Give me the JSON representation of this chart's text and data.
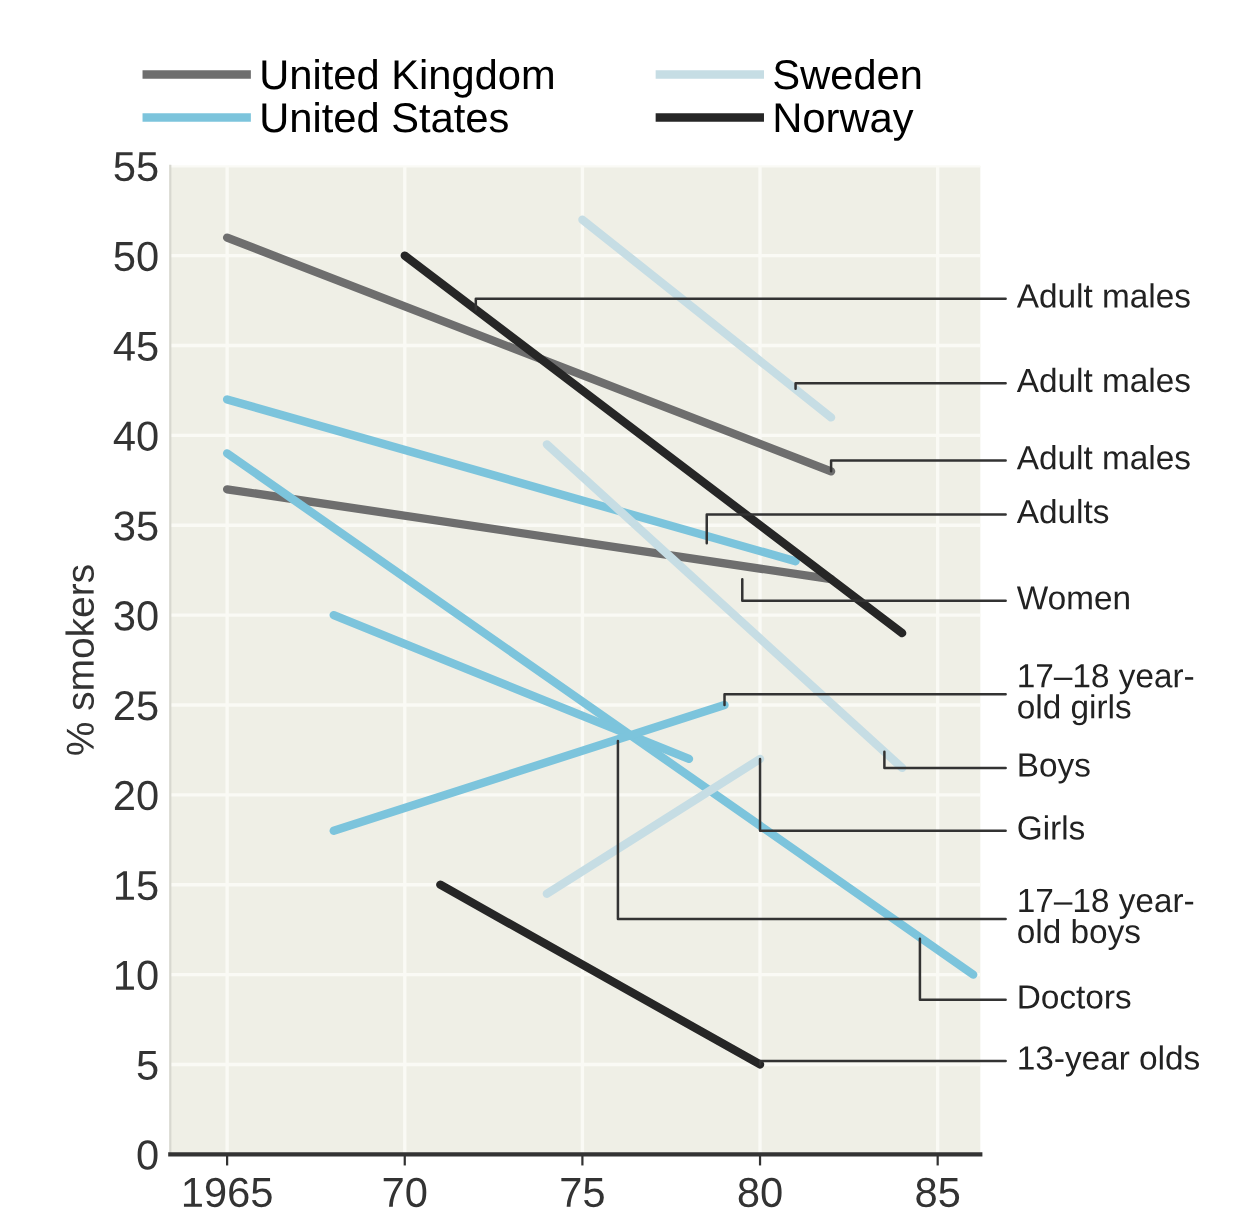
{
  "chart_data": {
    "type": "line",
    "ylabel": "% smokers",
    "xlim": [
      1963.4,
      1986.2
    ],
    "ylim": [
      0,
      55
    ],
    "xticks": [
      1965,
      {
        "value": 1970,
        "label": "70"
      },
      {
        "value": 1975,
        "label": "75"
      },
      {
        "value": 1980,
        "label": "80"
      },
      {
        "value": 1985,
        "label": "85"
      }
    ],
    "yticks": [
      0,
      5,
      10,
      15,
      20,
      25,
      30,
      35,
      40,
      45,
      50,
      55
    ],
    "grid": true,
    "legend": "top",
    "marker": "none",
    "line_style": "solid",
    "series": [
      {
        "name": "United Kingdom",
        "color": "#6e6e6e",
        "x": [
          1965,
          1982
        ],
        "values": [
          51,
          38
        ]
      },
      {
        "color": "#6e6e6e",
        "x": [
          1965,
          1982
        ],
        "values": [
          37,
          32
        ]
      },
      {
        "name": "United States",
        "color": "#7cc4dc",
        "x": [
          1965,
          1981
        ],
        "values": [
          42,
          33
        ]
      },
      {
        "color": "#7cc4dc",
        "x": [
          1965,
          1986
        ],
        "values": [
          39,
          10
        ]
      },
      {
        "color": "#7cc4dc",
        "x": [
          1968,
          1978
        ],
        "values": [
          30,
          22
        ]
      },
      {
        "color": "#7cc4dc",
        "x": [
          1968,
          1979
        ],
        "values": [
          18,
          25
        ]
      },
      {
        "name": "Sweden",
        "color": "#c6dde4",
        "x": [
          1975,
          1982
        ],
        "values": [
          52,
          41
        ]
      },
      {
        "color": "#c6dde4",
        "x": [
          1974,
          1984
        ],
        "values": [
          39.5,
          21.5
        ]
      },
      {
        "color": "#c6dde4",
        "x": [
          1974,
          1980
        ],
        "values": [
          14.5,
          22
        ]
      },
      {
        "name": "Norway",
        "color": "#262626",
        "x": [
          1970,
          1984
        ],
        "values": [
          50,
          29
        ]
      },
      {
        "color": "#262626",
        "x": [
          1971,
          1980
        ],
        "values": [
          15,
          5
        ]
      }
    ],
    "annotations": [
      {
        "text": "Adult males",
        "x": 1972,
        "y": 47
      },
      {
        "text": "Adult males",
        "x": 1981,
        "y": 42.6
      },
      {
        "text": "Adult males",
        "x": 1982,
        "y": 38
      },
      {
        "text": "Adults",
        "x": 1978.5,
        "y": 34
      },
      {
        "text": "Women",
        "x": 1979.5,
        "y": 32
      },
      {
        "text": "17–18 year-\nold girls",
        "x": 1979,
        "y": 25
      },
      {
        "text": "Boys",
        "x": 1983.5,
        "y": 22.4
      },
      {
        "text": "Girls",
        "x": 1980,
        "y": 22
      },
      {
        "text": "17–18 year-\nold boys",
        "x": 1976,
        "y": 23
      },
      {
        "text": "Doctors",
        "x": 1984.5,
        "y": 12
      },
      {
        "text": "13-year olds",
        "x": 1980,
        "y": 5
      }
    ]
  }
}
